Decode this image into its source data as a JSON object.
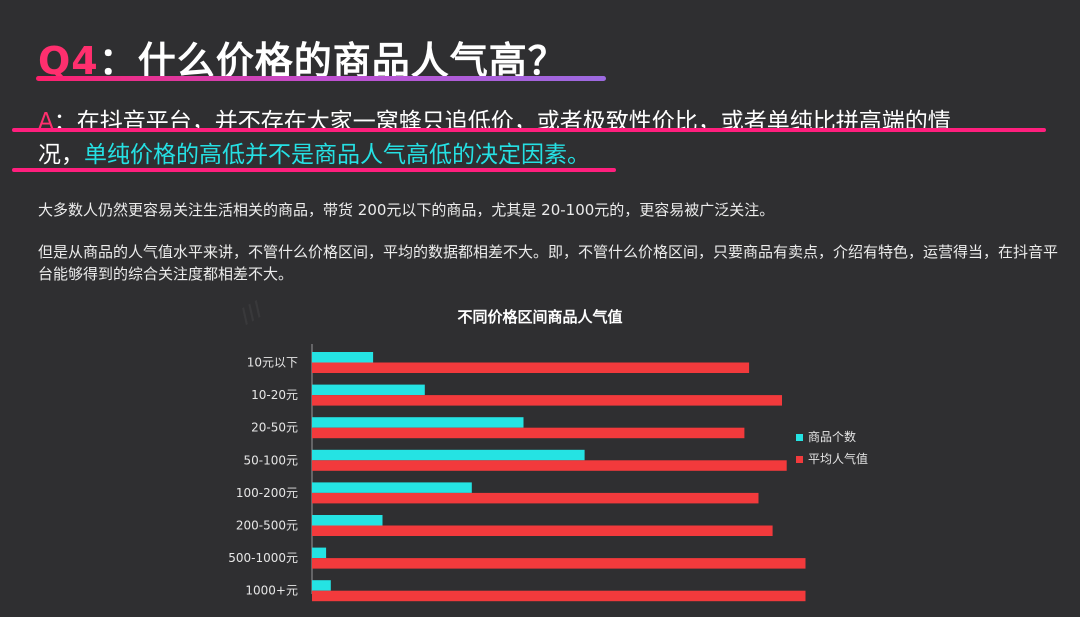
{
  "heading": {
    "prefix": "Q4",
    "text": "：什么价格的商品人气高？"
  },
  "answer": {
    "prefix": "A",
    "line1": "：在抖音平台，并不存在大家一窝蜂只追低价，或者极致性价比，或者单纯比拼高端的情",
    "line2_plain": "况，",
    "line2_highlight": "单纯价格的高低并不是商品人气高低的决定因素。"
  },
  "paragraphs": [
    "大多数人仍然更容易关注生活相关的商品，带货 200元以下的商品，尤其是 20-100元的，更容易被广泛关注。",
    "但是从商品的人气值水平来讲，不管什么价格区间，平均的数据都相差不大。即，不管什么价格区间，只要商品有卖点，介绍有特色，运营得当，在抖音平台能够得到的综合关注度都相差不大。"
  ],
  "colors": {
    "count": "#25e3e3",
    "popularity": "#f23a3c"
  },
  "chart_data": {
    "type": "bar",
    "orientation": "horizontal",
    "title": "不同价格区间商品人气值",
    "categories": [
      "10元以下",
      "10-20元",
      "20-50元",
      "50-100元",
      "100-200元",
      "200-500元",
      "500-1000元",
      "1000+元"
    ],
    "series": [
      {
        "name": "商品个数",
        "values": [
          13,
          24,
          45,
          58,
          34,
          15,
          3,
          4
        ]
      },
      {
        "name": "平均人气值",
        "values": [
          93,
          100,
          92,
          101,
          95,
          98,
          105,
          105
        ]
      }
    ],
    "xlim": [
      0,
      180
    ],
    "grid": false,
    "legend_position": "right"
  }
}
